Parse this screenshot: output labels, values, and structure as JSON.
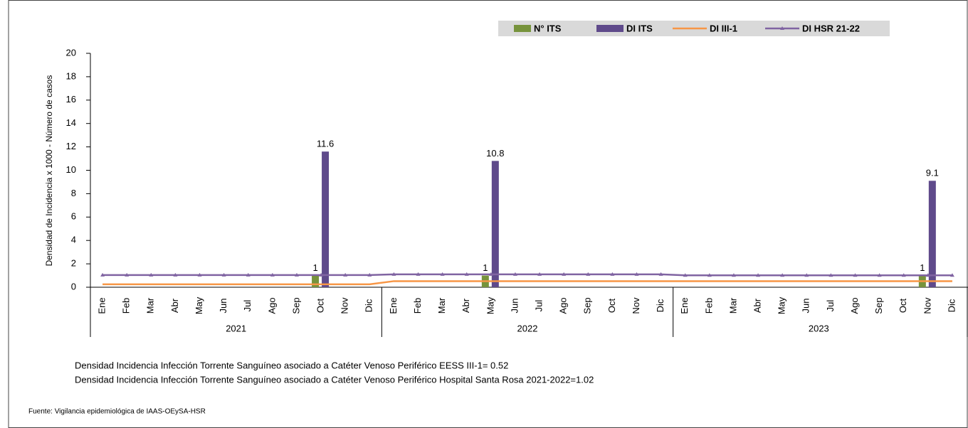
{
  "chart_data": {
    "type": "bar_line",
    "y_axis_label": "Densidad de Incidencia x 1000 - Número de casos",
    "categories": [
      "Ene",
      "Feb",
      "Mar",
      "Abr",
      "May",
      "Jun",
      "Jul",
      "Ago",
      "Sep",
      "Oct",
      "Nov",
      "Dic",
      "Ene",
      "Feb",
      "Mar",
      "Abr",
      "May",
      "Jun",
      "Jul",
      "Ago",
      "Sep",
      "Oct",
      "Nov",
      "Dic",
      "Ene",
      "Feb",
      "Mar",
      "Abr",
      "May",
      "Jun",
      "Jul",
      "Ago",
      "Sep",
      "Oct",
      "Nov",
      "Dic"
    ],
    "year_groups": [
      "2021",
      "2022",
      "2023"
    ],
    "ylim": [
      0,
      20
    ],
    "yticks": [
      0,
      2,
      4,
      6,
      8,
      10,
      12,
      14,
      16,
      18,
      20
    ],
    "series": [
      {
        "name": "N° ITS",
        "kind": "bar",
        "color": "#77933c",
        "values": [
          null,
          null,
          null,
          null,
          null,
          null,
          null,
          null,
          null,
          1,
          null,
          null,
          null,
          null,
          null,
          null,
          1,
          null,
          null,
          null,
          null,
          null,
          null,
          null,
          null,
          null,
          null,
          null,
          null,
          null,
          null,
          null,
          null,
          null,
          1,
          null
        ]
      },
      {
        "name": "DI ITS",
        "kind": "bar",
        "color": "#5f4a8b",
        "values": [
          null,
          null,
          null,
          null,
          null,
          null,
          null,
          null,
          null,
          11.6,
          null,
          null,
          null,
          null,
          null,
          null,
          10.8,
          null,
          null,
          null,
          null,
          null,
          null,
          null,
          null,
          null,
          null,
          null,
          null,
          null,
          null,
          null,
          null,
          null,
          9.1,
          null
        ]
      },
      {
        "name": "DI III-1",
        "kind": "line",
        "color": "#f79646",
        "values": [
          0.25,
          0.25,
          0.25,
          0.25,
          0.25,
          0.25,
          0.25,
          0.25,
          0.25,
          0.25,
          0.25,
          0.25,
          0.52,
          0.52,
          0.52,
          0.52,
          0.52,
          0.52,
          0.52,
          0.52,
          0.52,
          0.52,
          0.52,
          0.52,
          0.52,
          0.52,
          0.52,
          0.52,
          0.52,
          0.52,
          0.52,
          0.52,
          0.52,
          0.52,
          0.52,
          0.52
        ]
      },
      {
        "name": "DI HSR 21-22",
        "kind": "line",
        "marker": "triangle",
        "color": "#8064a2",
        "values": [
          1.04,
          1.04,
          1.04,
          1.04,
          1.04,
          1.04,
          1.04,
          1.04,
          1.04,
          1.04,
          1.04,
          1.04,
          1.1,
          1.1,
          1.1,
          1.1,
          1.1,
          1.1,
          1.1,
          1.1,
          1.1,
          1.1,
          1.1,
          1.1,
          1.02,
          1.02,
          1.02,
          1.02,
          1.02,
          1.02,
          1.02,
          1.02,
          1.02,
          1.02,
          1.02,
          1.02
        ]
      }
    ],
    "notes": [
      "Densidad Incidencia Infección Torrente Sanguíneo asociado a Catéter Venoso Periférico  EESS III-1= 0.52",
      "Densidad Incidencia Infección Torrente Sanguíneo asociado a Catéter Venoso Periférico Hospital Santa Rosa 2021-2022=1.02"
    ],
    "source": "Fuente: Vigilancia epidemiológica de IAAS-OEySA-HSR"
  }
}
